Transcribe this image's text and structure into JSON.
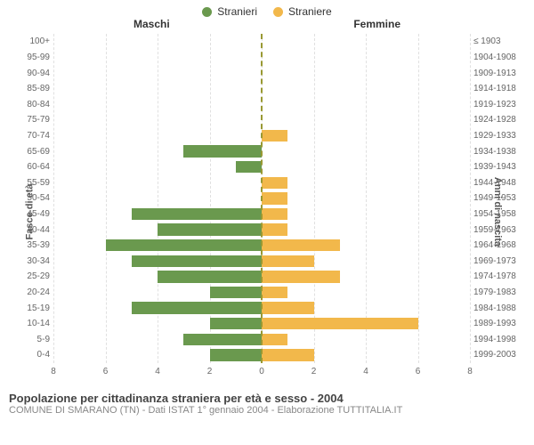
{
  "chart": {
    "type": "population-pyramid",
    "legend": [
      {
        "label": "Stranieri",
        "color": "#6a994e"
      },
      {
        "label": "Straniere",
        "color": "#f2b84b"
      }
    ],
    "header_left": "Maschi",
    "header_right": "Femmine",
    "ylabel_left": "Fasce di età",
    "ylabel_right": "Anni di nascita",
    "xlim": 8,
    "xticks": [
      8,
      6,
      4,
      2,
      0,
      2,
      4,
      6,
      8
    ],
    "grid_color": "#e0e0e0",
    "divider_color": "#999933",
    "background_color": "#ffffff",
    "age_label_fontsize": 10,
    "rows": [
      {
        "age": "100+",
        "birth": "≤ 1903",
        "male": 0,
        "female": 0
      },
      {
        "age": "95-99",
        "birth": "1904-1908",
        "male": 0,
        "female": 0
      },
      {
        "age": "90-94",
        "birth": "1909-1913",
        "male": 0,
        "female": 0
      },
      {
        "age": "85-89",
        "birth": "1914-1918",
        "male": 0,
        "female": 0
      },
      {
        "age": "80-84",
        "birth": "1919-1923",
        "male": 0,
        "female": 0
      },
      {
        "age": "75-79",
        "birth": "1924-1928",
        "male": 0,
        "female": 0
      },
      {
        "age": "70-74",
        "birth": "1929-1933",
        "male": 0,
        "female": 1
      },
      {
        "age": "65-69",
        "birth": "1934-1938",
        "male": 3,
        "female": 0
      },
      {
        "age": "60-64",
        "birth": "1939-1943",
        "male": 1,
        "female": 0
      },
      {
        "age": "55-59",
        "birth": "1944-1948",
        "male": 0,
        "female": 1
      },
      {
        "age": "50-54",
        "birth": "1949-1953",
        "male": 0,
        "female": 1
      },
      {
        "age": "45-49",
        "birth": "1954-1958",
        "male": 5,
        "female": 1
      },
      {
        "age": "40-44",
        "birth": "1959-1963",
        "male": 4,
        "female": 1
      },
      {
        "age": "35-39",
        "birth": "1964-1968",
        "male": 6,
        "female": 3
      },
      {
        "age": "30-34",
        "birth": "1969-1973",
        "male": 5,
        "female": 2
      },
      {
        "age": "25-29",
        "birth": "1974-1978",
        "male": 4,
        "female": 3
      },
      {
        "age": "20-24",
        "birth": "1979-1983",
        "male": 2,
        "female": 1
      },
      {
        "age": "15-19",
        "birth": "1984-1988",
        "male": 5,
        "female": 2
      },
      {
        "age": "10-14",
        "birth": "1989-1993",
        "male": 2,
        "female": 6
      },
      {
        "age": "5-9",
        "birth": "1994-1998",
        "male": 3,
        "female": 1
      },
      {
        "age": "0-4",
        "birth": "1999-2003",
        "male": 2,
        "female": 2
      }
    ]
  },
  "footer": {
    "title": "Popolazione per cittadinanza straniera per età e sesso - 2004",
    "sub": "COMUNE DI SMARANO (TN) - Dati ISTAT 1° gennaio 2004 - Elaborazione TUTTITALIA.IT"
  }
}
